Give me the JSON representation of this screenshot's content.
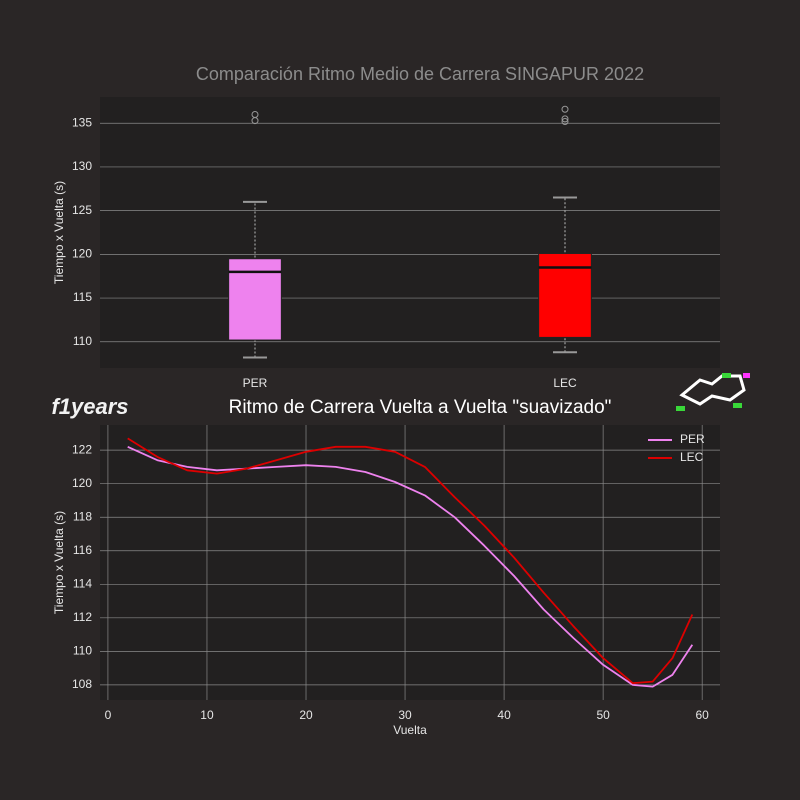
{
  "logo": "f1years",
  "chart_data": [
    {
      "type": "box",
      "title": "Comparación Ritmo Medio de Carrera SINGAPUR 2022",
      "ylabel": "Tiempo x Vuelta (s)",
      "categories": [
        "PER",
        "LEC"
      ],
      "boxes": [
        {
          "color": "#ee82ee",
          "whislo": 108.2,
          "q1": 110.2,
          "med": 118,
          "q3": 119.5,
          "whishi": 126,
          "fliers": [
            135.3,
            136
          ]
        },
        {
          "color": "#ff0000",
          "whislo": 108.8,
          "q1": 110.5,
          "med": 118.5,
          "q3": 120.1,
          "whishi": 126.5,
          "fliers": [
            135.2,
            135.5,
            136.6
          ]
        }
      ],
      "ylim": [
        107,
        138
      ],
      "yticks": [
        110,
        115,
        120,
        125,
        130,
        135
      ],
      "grid": true
    },
    {
      "type": "line",
      "title": "Ritmo de Carrera Vuelta a Vuelta \"suavizado\"",
      "xlabel": "Vuelta",
      "ylabel": "Tiempo x Vuelta (s)",
      "x": [
        2,
        5,
        8,
        11,
        14,
        17,
        20,
        23,
        26,
        29,
        32,
        35,
        38,
        41,
        44,
        47,
        50,
        53,
        55,
        57,
        59
      ],
      "series": [
        {
          "name": "PER",
          "color": "#ee82ee",
          "values": [
            122.2,
            121.4,
            121.0,
            120.8,
            120.9,
            121.0,
            121.1,
            121.0,
            120.7,
            120.1,
            119.3,
            118.0,
            116.3,
            114.5,
            112.5,
            110.8,
            109.2,
            108.0,
            107.9,
            108.6,
            110.4
          ]
        },
        {
          "name": "LEC",
          "color": "#dd0000",
          "values": [
            122.7,
            121.6,
            120.8,
            120.6,
            120.9,
            121.4,
            121.9,
            122.2,
            122.2,
            121.9,
            121.0,
            119.2,
            117.5,
            115.6,
            113.5,
            111.5,
            109.6,
            108.1,
            108.2,
            109.6,
            112.2
          ]
        }
      ],
      "xlim": [
        -0.8,
        61.8
      ],
      "ylim": [
        107.1,
        123.5
      ],
      "xticks": [
        0,
        10,
        20,
        30,
        40,
        50,
        60
      ],
      "yticks": [
        108,
        110,
        112,
        114,
        116,
        118,
        120,
        122
      ],
      "grid": true,
      "legend": "upper right"
    }
  ]
}
